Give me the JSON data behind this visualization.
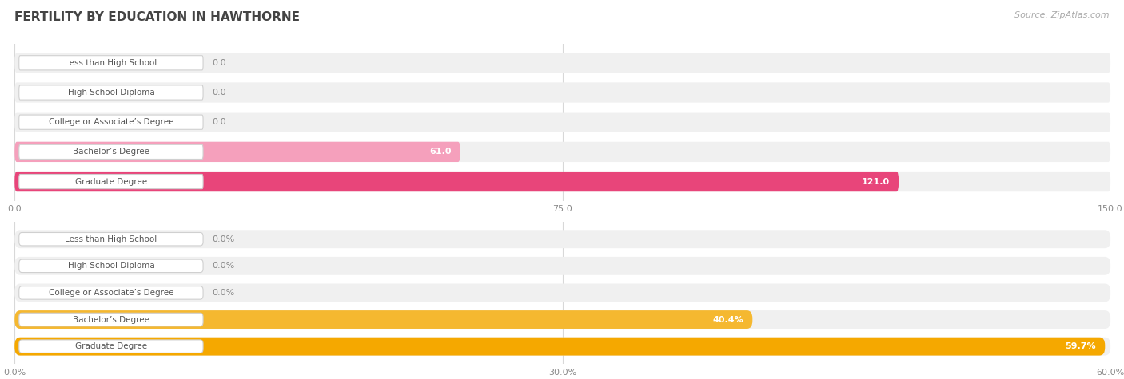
{
  "title": "FERTILITY BY EDUCATION IN HAWTHORNE",
  "source": "Source: ZipAtlas.com",
  "top_chart": {
    "categories": [
      "Less than High School",
      "High School Diploma",
      "College or Associate’s Degree",
      "Bachelor’s Degree",
      "Graduate Degree"
    ],
    "values": [
      0.0,
      0.0,
      0.0,
      61.0,
      121.0
    ],
    "value_labels": [
      "0.0",
      "0.0",
      "0.0",
      "61.0",
      "121.0"
    ],
    "xlim_max": 150.0,
    "xticks": [
      0.0,
      75.0,
      150.0
    ],
    "xtick_labels": [
      "0.0",
      "75.0",
      "150.0"
    ],
    "colors": [
      "#f5b8cb",
      "#f5b8cb",
      "#f5b8cb",
      "#f5a0bc",
      "#e8457a"
    ],
    "bar_bg_color": "#f0f0f0"
  },
  "bottom_chart": {
    "categories": [
      "Less than High School",
      "High School Diploma",
      "College or Associate’s Degree",
      "Bachelor’s Degree",
      "Graduate Degree"
    ],
    "values": [
      0.0,
      0.0,
      0.0,
      40.4,
      59.7
    ],
    "value_labels": [
      "0.0%",
      "0.0%",
      "0.0%",
      "40.4%",
      "59.7%"
    ],
    "xlim_max": 60.0,
    "xticks": [
      0.0,
      30.0,
      60.0
    ],
    "xtick_labels": [
      "0.0%",
      "30.0%",
      "60.0%"
    ],
    "colors": [
      "#f5d4a8",
      "#f5d4a8",
      "#f5d4a8",
      "#f5b830",
      "#f5a800"
    ],
    "bar_bg_color": "#f0f0f0"
  },
  "background_color": "#ffffff",
  "title_fontsize": 11,
  "source_fontsize": 8,
  "bar_label_fontsize": 8,
  "category_label_fontsize": 7.5,
  "axis_tick_fontsize": 8
}
